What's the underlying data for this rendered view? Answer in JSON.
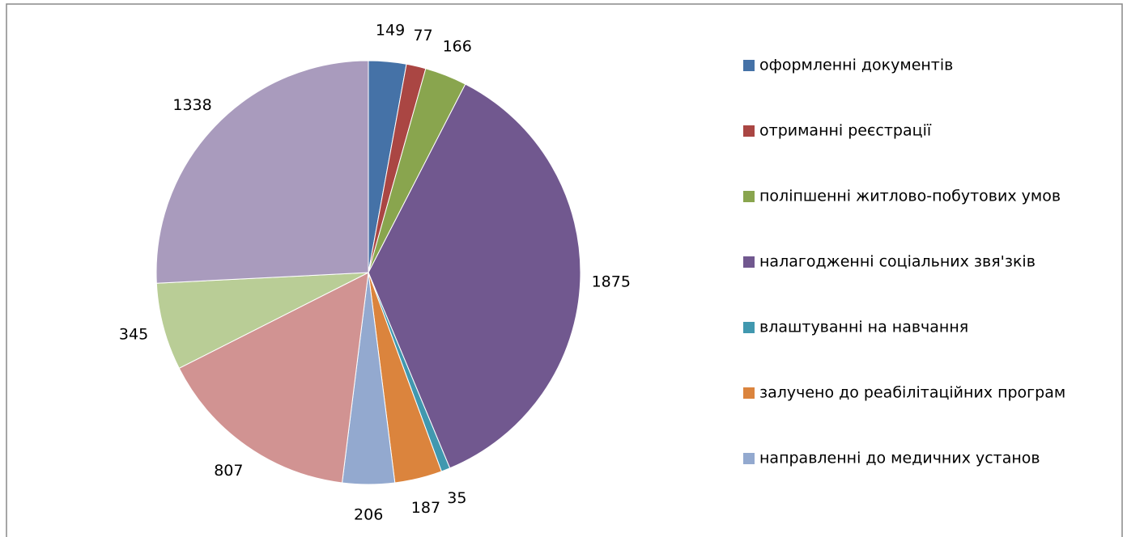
{
  "chart_data": {
    "type": "pie",
    "categories": [
      "оформленні документів",
      "отриманні реєстрації",
      "поліпшенні житлово-побутових умов",
      "налагодженні соціальних звя'зків",
      "влаштуванні на навчання",
      "залучено до реабілітаційних програм",
      "направленні до медичних установ",
      null,
      null,
      null
    ],
    "values": [
      149,
      77,
      166,
      1875,
      35,
      187,
      206,
      807,
      345,
      1338
    ],
    "colors": [
      "#4572a7",
      "#aa4643",
      "#89a54e",
      "#71588f",
      "#4198af",
      "#db843d",
      "#93a9cf",
      "#d19392",
      "#b9cd96",
      "#a99bbd"
    ],
    "legend": "right"
  }
}
